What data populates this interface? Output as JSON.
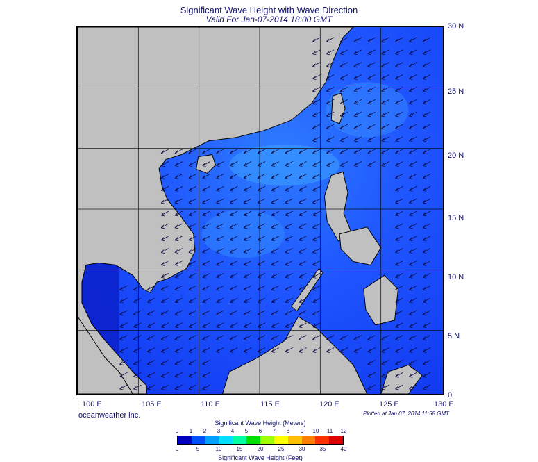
{
  "header": {
    "title": "Significant Wave Height with Wave Direction",
    "subtitle": "Valid For Jan-07-2014 18:00 GMT"
  },
  "map": {
    "lon_labels": [
      "100 E",
      "105 E",
      "110 E",
      "115 E",
      "120 E",
      "125 E",
      "130 E"
    ],
    "lat_labels": [
      "30 N",
      "25 N",
      "20 N",
      "15 N",
      "10 N",
      "5 N",
      "0"
    ],
    "lon_range": [
      100,
      130
    ],
    "lat_range": [
      0,
      30
    ],
    "land_color": "#c0c0c0",
    "sea_color_low": "#1a3cff",
    "sea_color_high": "#3ca8ff",
    "arrow_direction": "toward southwest"
  },
  "footer": {
    "brand": "oceanweather inc.",
    "plotted": "Plotted at Jan 07, 2014 11:58 GMT"
  },
  "colorbar": {
    "meters_title": "Significant Wave Height (Meters)",
    "feet_title": "Significant Wave Height (Feet)",
    "meters_ticks": [
      "0",
      "1",
      "2",
      "3",
      "4",
      "5",
      "6",
      "7",
      "8",
      "9",
      "10",
      "11",
      "12"
    ],
    "feet_ticks": [
      "0",
      "5",
      "10",
      "15",
      "20",
      "25",
      "30",
      "35",
      "40"
    ],
    "colors": [
      "#0000c0",
      "#0050ff",
      "#00a0ff",
      "#00e0ff",
      "#00ffa0",
      "#00e000",
      "#a0ff00",
      "#ffff00",
      "#ffc000",
      "#ff8000",
      "#ff3000",
      "#e00000"
    ]
  }
}
